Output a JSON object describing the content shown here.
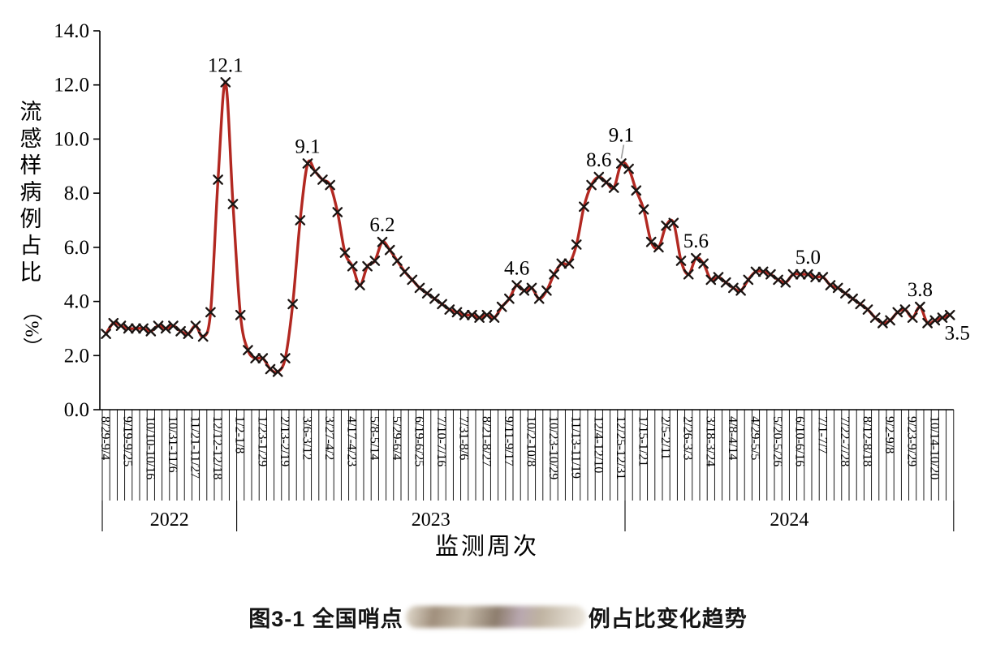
{
  "page": {
    "background": "#ffffff"
  },
  "y_axis": {
    "title": "流感样病例占比",
    "unit": "（%）",
    "tick_labels": [
      "14.0",
      "12.0",
      "10.0",
      "8.0",
      "6.0",
      "4.0",
      "2.0",
      "0.0"
    ]
  },
  "x_axis": {
    "title": "监测周次"
  },
  "caption": {
    "prefix": "图3-1  全国哨点",
    "suffix": "例占比变化趋势",
    "redacted_middle": true
  },
  "chart_data": {
    "type": "line",
    "title": "",
    "ylabel": "流感样病例占比（%）",
    "xlabel": "监测周次",
    "ylim": [
      0,
      14
    ],
    "ytick_step": 2.0,
    "n_points": 114,
    "label_interval": 3,
    "line_color": "#b22821",
    "marker": "x",
    "marker_color": "#1a1412",
    "leader_color": "#9a9a9a",
    "week_labels": [
      "8/29-9/4",
      "9/19-9/25",
      "10/10-10/16",
      "10/31-11/6",
      "11/21-11/27",
      "12/12-12/18",
      "1/2-1/8",
      "1/23-1/29",
      "2/13-2/19",
      "3/6-3/12",
      "3/27-4/2",
      "4/17-4/23",
      "5/8-5/14",
      "5/29-6/4",
      "6/19-6/25",
      "7/10-7/16",
      "7/31-8/6",
      "8/21-8/27",
      "9/11-9/17",
      "10/2-10/8",
      "10/23-10/29",
      "11/13-11/19",
      "12/4-12/10",
      "12/25-12/31",
      "1/15-1/21",
      "2/5-2/11",
      "2/26-3/3",
      "3/18-3/24",
      "4/8-4/14",
      "4/29-5/5",
      "5/20-5/26",
      "6/10-6/16",
      "7/1-7/7",
      "7/22-7/28",
      "8/12-8/18",
      "9/2-9/8",
      "9/23-9/29",
      "10/14-10/20"
    ],
    "values": [
      2.8,
      3.2,
      3.1,
      3.0,
      3.0,
      3.0,
      2.9,
      3.1,
      3.0,
      3.1,
      2.9,
      2.8,
      3.1,
      2.7,
      3.6,
      8.5,
      12.1,
      7.6,
      3.5,
      2.2,
      1.9,
      1.9,
      1.5,
      1.4,
      1.9,
      3.9,
      7.0,
      9.1,
      8.8,
      8.5,
      8.3,
      7.3,
      5.8,
      5.3,
      4.6,
      5.3,
      5.5,
      6.2,
      5.9,
      5.5,
      5.1,
      4.8,
      4.5,
      4.3,
      4.1,
      3.9,
      3.7,
      3.6,
      3.5,
      3.5,
      3.4,
      3.5,
      3.4,
      3.8,
      4.1,
      4.6,
      4.4,
      4.5,
      4.1,
      4.4,
      5.0,
      5.4,
      5.4,
      6.1,
      7.5,
      8.3,
      8.6,
      8.4,
      8.2,
      9.1,
      8.9,
      8.1,
      7.4,
      6.2,
      6.0,
      6.8,
      6.9,
      5.5,
      5.0,
      5.6,
      5.4,
      4.8,
      4.9,
      4.7,
      4.5,
      4.4,
      4.8,
      5.1,
      5.1,
      5.0,
      4.8,
      4.7,
      5.0,
      5.0,
      5.0,
      4.9,
      4.9,
      4.6,
      4.5,
      4.3,
      4.1,
      3.9,
      3.7,
      3.4,
      3.2,
      3.3,
      3.6,
      3.7,
      3.4,
      3.8,
      3.2,
      3.3,
      3.4,
      3.5
    ],
    "year_bands": [
      {
        "label": "2022",
        "start": 0,
        "end": 17
      },
      {
        "label": "2023",
        "start": 18,
        "end": 69
      },
      {
        "label": "2024",
        "start": 70,
        "end": 113
      }
    ],
    "annotations": [
      {
        "index": 16,
        "text": "12.1",
        "placement": "above"
      },
      {
        "index": 27,
        "text": "9.1",
        "placement": "above"
      },
      {
        "index": 37,
        "text": "6.2",
        "placement": "above"
      },
      {
        "index": 55,
        "text": "4.6",
        "placement": "above"
      },
      {
        "index": 66,
        "text": "8.6",
        "placement": "above"
      },
      {
        "index": 69,
        "text": "9.1",
        "placement": "above-leader"
      },
      {
        "index": 79,
        "text": "5.6",
        "placement": "above"
      },
      {
        "index": 94,
        "text": "5.0",
        "placement": "above"
      },
      {
        "index": 109,
        "text": "3.8",
        "placement": "above"
      },
      {
        "index": 113,
        "text": "3.5",
        "placement": "below-right"
      }
    ]
  }
}
